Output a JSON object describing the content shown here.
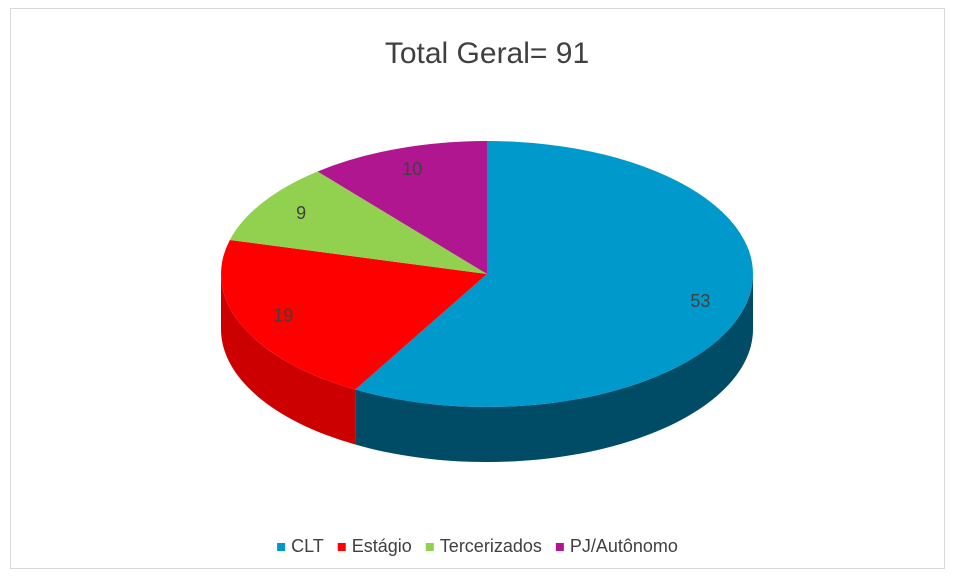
{
  "chart_data": {
    "type": "pie",
    "title": "Total Geral= 91",
    "categories": [
      "CLT",
      "Estágio",
      "Tercerizados",
      "PJ/Autônomo"
    ],
    "values": [
      53,
      19,
      9,
      10
    ],
    "colors": [
      "#0099cc",
      "#ff0000",
      "#92d050",
      "#b0168f"
    ],
    "legend": "bottom"
  }
}
